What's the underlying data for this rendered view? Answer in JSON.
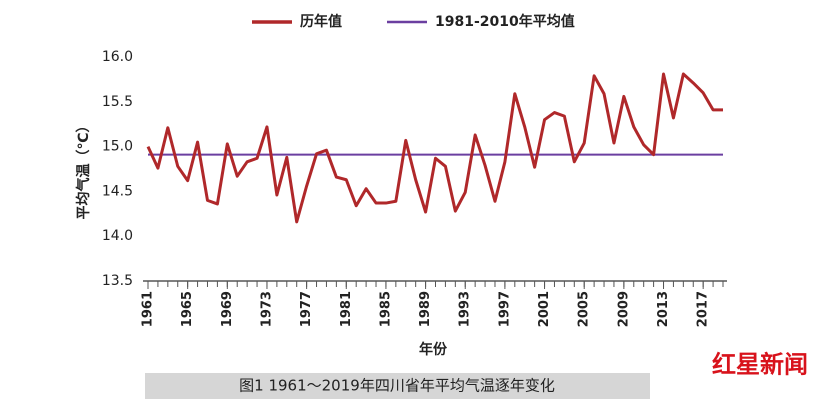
{
  "chart_data": {
    "type": "line",
    "caption": "图1  1961～2019年四川省年平均气温逐年变化",
    "logo": "红星新闻",
    "xlabel": "年份",
    "ylabel": "平均气温（℃）",
    "x": [
      1961,
      1962,
      1963,
      1964,
      1965,
      1966,
      1967,
      1968,
      1969,
      1970,
      1971,
      1972,
      1973,
      1974,
      1975,
      1976,
      1977,
      1978,
      1979,
      1980,
      1981,
      1982,
      1983,
      1984,
      1985,
      1986,
      1987,
      1988,
      1989,
      1990,
      1991,
      1992,
      1993,
      1994,
      1995,
      1996,
      1997,
      1998,
      1999,
      2000,
      2001,
      2002,
      2003,
      2004,
      2005,
      2006,
      2007,
      2008,
      2009,
      2010,
      2011,
      2012,
      2013,
      2014,
      2015,
      2016,
      2017,
      2018,
      2019
    ],
    "series": [
      {
        "name": "历年值",
        "color": "#b0282a",
        "width": 3,
        "values": [
          15.0,
          14.76,
          15.21,
          14.78,
          14.62,
          15.05,
          14.4,
          14.36,
          15.03,
          14.67,
          14.83,
          14.87,
          15.22,
          14.46,
          14.88,
          14.16,
          14.56,
          14.92,
          14.96,
          14.66,
          14.63,
          14.34,
          14.53,
          14.37,
          14.37,
          14.39,
          15.07,
          14.63,
          14.27,
          14.87,
          14.78,
          14.28,
          14.49,
          15.13,
          14.79,
          14.39,
          14.83,
          15.59,
          15.22,
          14.77,
          15.3,
          15.38,
          15.34,
          14.83,
          15.04,
          15.79,
          15.59,
          15.04,
          15.56,
          15.22,
          15.02,
          14.91,
          15.81,
          15.32,
          15.81,
          15.71,
          15.6,
          15.41,
          15.41
        ]
      },
      {
        "name": "1981-2010年平均值",
        "color": "#6b3fa0",
        "width": 2,
        "values": [
          14.91,
          14.91,
          14.91,
          14.91,
          14.91,
          14.91,
          14.91,
          14.91,
          14.91,
          14.91,
          14.91,
          14.91,
          14.91,
          14.91,
          14.91,
          14.91,
          14.91,
          14.91,
          14.91,
          14.91,
          14.91,
          14.91,
          14.91,
          14.91,
          14.91,
          14.91,
          14.91,
          14.91,
          14.91,
          14.91,
          14.91,
          14.91,
          14.91,
          14.91,
          14.91,
          14.91,
          14.91,
          14.91,
          14.91,
          14.91,
          14.91,
          14.91,
          14.91,
          14.91,
          14.91,
          14.91,
          14.91,
          14.91,
          14.91,
          14.91,
          14.91,
          14.91,
          14.91,
          14.91,
          14.91,
          14.91,
          14.91,
          14.91,
          14.91
        ]
      }
    ],
    "xlim": [
      1961,
      2019
    ],
    "xticks": [
      1961,
      1965,
      1969,
      1973,
      1977,
      1981,
      1985,
      1989,
      1993,
      1997,
      2001,
      2005,
      2009,
      2013,
      2017
    ],
    "ylim": [
      13.5,
      16.0
    ],
    "yticks": [
      13.5,
      {
        "value": 14,
        "label": "14.0"
      },
      14.5,
      {
        "value": 15,
        "label": "15.0"
      },
      15.5,
      {
        "value": 16,
        "label": "16.0"
      }
    ],
    "grid": false,
    "legend": "top"
  }
}
